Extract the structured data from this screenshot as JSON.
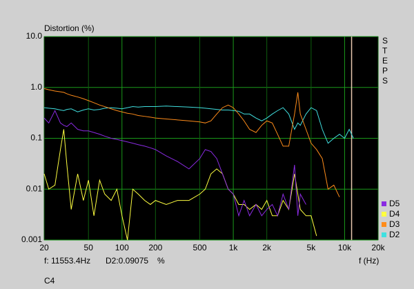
{
  "chart_data": {
    "type": "line",
    "title": "Distortion (%)",
    "side_label": "STEPS",
    "x_label": "f (Hz)",
    "x_scale": "log",
    "y_scale": "log",
    "grid": true,
    "legend": "bottom-right",
    "xlim": [
      20,
      20000
    ],
    "ylim": [
      0.001,
      10
    ],
    "xticks": [
      20,
      50,
      100,
      200,
      500,
      {
        "value": 1000,
        "label": "1k"
      },
      {
        "value": 2000,
        "label": "2k"
      },
      {
        "value": 5000,
        "label": "5k"
      },
      {
        "value": 10000,
        "label": "10k"
      },
      {
        "value": 20000,
        "label": "20k"
      }
    ],
    "yticks": [
      {
        "value": 10,
        "label": "10.0"
      },
      {
        "value": 1,
        "label": "1.0"
      },
      0.1,
      0.01,
      0.001
    ],
    "cursor_x": 11553.4,
    "cursor_color": "#e8c8b0",
    "readout": {
      "frequency": "f: 11553.4Hz",
      "value": "D2:0.09075",
      "unit": "%",
      "channel": "C4"
    },
    "x": [
      20,
      22,
      25,
      28,
      30,
      32,
      35,
      40,
      45,
      50,
      56,
      63,
      70,
      80,
      90,
      100,
      112,
      125,
      140,
      160,
      180,
      200,
      250,
      315,
      400,
      500,
      560,
      630,
      710,
      800,
      900,
      1000,
      1120,
      1250,
      1400,
      1600,
      1800,
      2000,
      2240,
      2500,
      2800,
      3150,
      3550,
      3800,
      4000,
      4500,
      5000,
      5600,
      6300,
      7100,
      8000,
      9000,
      10000,
      11000,
      12000
    ],
    "series": [
      {
        "name": "D5",
        "color": "#8a2be2",
        "values": [
          0.25,
          0.2,
          0.35,
          0.2,
          0.18,
          0.17,
          0.2,
          0.15,
          0.14,
          0.14,
          0.13,
          0.12,
          0.11,
          0.1,
          0.095,
          0.09,
          0.085,
          0.08,
          0.075,
          0.07,
          0.065,
          0.06,
          0.045,
          0.035,
          0.025,
          0.04,
          0.06,
          0.055,
          0.04,
          0.02,
          0.01,
          0.008,
          0.003,
          0.006,
          0.003,
          0.005,
          0.003,
          0.004,
          0.005,
          0.003,
          0.008,
          0.004,
          0.03,
          0.003,
          0.008,
          0.005,
          null,
          null,
          null,
          null,
          null,
          null,
          null,
          null,
          null
        ]
      },
      {
        "name": "D4",
        "color": "#ffff40",
        "values": [
          0.02,
          0.01,
          0.012,
          0.06,
          0.15,
          0.03,
          0.004,
          0.02,
          0.006,
          0.015,
          0.003,
          0.015,
          0.008,
          0.006,
          0.01,
          0.003,
          0.001,
          0.01,
          0.008,
          0.006,
          0.005,
          0.006,
          0.005,
          0.006,
          0.006,
          0.008,
          0.01,
          0.02,
          0.025,
          0.02,
          0.01,
          0.008,
          0.005,
          0.005,
          0.004,
          0.005,
          0.004,
          0.006,
          0.003,
          0.003,
          0.006,
          0.004,
          0.02,
          0.008,
          0.004,
          0.003,
          0.003,
          0.0012,
          null,
          null,
          null,
          null,
          null,
          null,
          null
        ]
      },
      {
        "name": "D3",
        "color": "#ff8c1a",
        "values": [
          0.95,
          0.9,
          0.85,
          0.82,
          0.8,
          0.75,
          0.7,
          0.65,
          0.6,
          0.55,
          0.5,
          0.45,
          0.42,
          0.38,
          0.35,
          0.33,
          0.31,
          0.3,
          0.28,
          0.27,
          0.26,
          0.25,
          0.24,
          0.23,
          0.22,
          0.21,
          0.2,
          0.22,
          0.3,
          0.4,
          0.45,
          0.4,
          0.3,
          0.22,
          0.15,
          0.13,
          0.18,
          0.22,
          0.2,
          0.12,
          0.07,
          0.07,
          0.3,
          0.8,
          0.3,
          0.15,
          0.08,
          0.06,
          0.04,
          0.01,
          0.012,
          0.007,
          null,
          null,
          null
        ]
      },
      {
        "name": "D2",
        "color": "#40e0e0",
        "values": [
          0.4,
          0.39,
          0.38,
          0.36,
          0.35,
          0.37,
          0.38,
          0.33,
          0.36,
          0.38,
          0.36,
          0.37,
          0.39,
          0.4,
          0.39,
          0.38,
          0.4,
          0.42,
          0.41,
          0.42,
          0.42,
          0.42,
          0.43,
          0.42,
          0.41,
          0.4,
          0.39,
          0.38,
          0.37,
          0.36,
          0.36,
          0.35,
          0.34,
          0.3,
          0.3,
          0.25,
          0.22,
          0.25,
          0.3,
          0.35,
          0.4,
          0.3,
          0.15,
          0.2,
          0.18,
          0.3,
          0.4,
          0.35,
          0.15,
          0.08,
          0.1,
          0.12,
          0.1,
          0.15,
          0.1
        ]
      }
    ]
  }
}
